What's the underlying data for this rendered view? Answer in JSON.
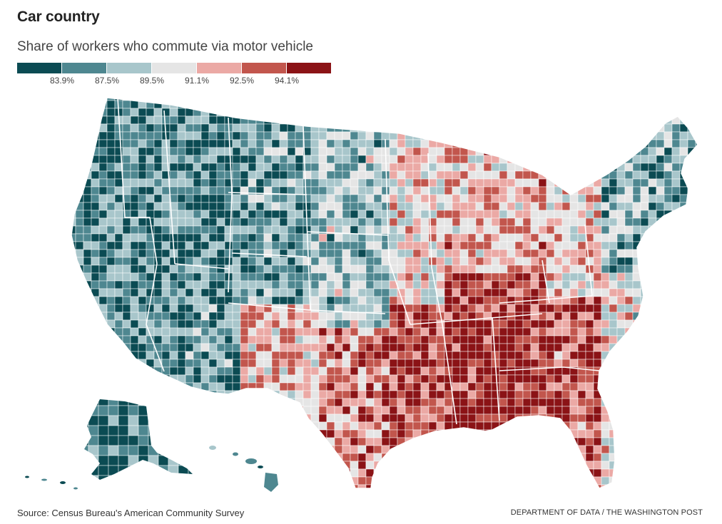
{
  "header": {
    "title": "Car country",
    "subtitle": "Share of workers who commute via motor vehicle"
  },
  "legend": {
    "colors": [
      "#0b4b53",
      "#4e8790",
      "#a8c6cb",
      "#e5e5e5",
      "#eba9a5",
      "#c2564d",
      "#8b1316"
    ],
    "breaks": [
      "83.9%",
      "87.5%",
      "89.5%",
      "91.1%",
      "92.5%",
      "94.1%"
    ]
  },
  "footer": {
    "source": "Source: Census Bureau's American Community Survey",
    "credit": "DEPARTMENT OF DATA / THE WASHINGTON POST"
  }
}
